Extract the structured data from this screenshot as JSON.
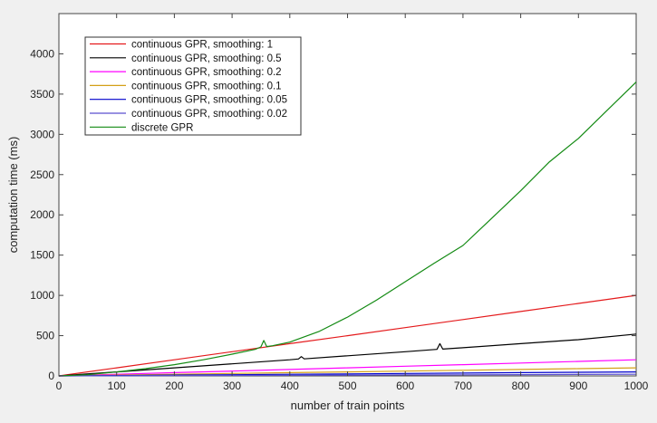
{
  "chart_data": {
    "type": "line",
    "title": "",
    "xlabel": "number of train points",
    "ylabel": "computation time (ms)",
    "xlim": [
      0,
      1000
    ],
    "ylim": [
      0,
      4500
    ],
    "xticks": [
      0,
      100,
      200,
      300,
      400,
      500,
      600,
      700,
      800,
      900,
      1000
    ],
    "yticks": [
      0,
      500,
      1000,
      1500,
      2000,
      2500,
      3000,
      3500,
      4000
    ],
    "grid": false,
    "legend_position": "top-left",
    "series": [
      {
        "name": "continuous GPR, smoothing: 1",
        "color": "#e41a1c",
        "x": [
          0,
          100,
          200,
          300,
          400,
          500,
          600,
          700,
          800,
          900,
          1000
        ],
        "y": [
          0,
          100,
          200,
          300,
          400,
          500,
          600,
          700,
          800,
          900,
          1000
        ]
      },
      {
        "name": "continuous GPR, smoothing: 0.5",
        "color": "#000000",
        "x": [
          0,
          100,
          200,
          300,
          400,
          415,
          420,
          425,
          500,
          600,
          655,
          660,
          665,
          700,
          800,
          900,
          1000
        ],
        "y": [
          0,
          50,
          100,
          150,
          200,
          210,
          240,
          212,
          250,
          300,
          330,
          400,
          333,
          350,
          400,
          450,
          520
        ]
      },
      {
        "name": "continuous GPR, smoothing: 0.2",
        "color": "#ff00ff",
        "x": [
          0,
          100,
          200,
          300,
          400,
          500,
          600,
          700,
          800,
          900,
          1000
        ],
        "y": [
          0,
          20,
          40,
          60,
          80,
          100,
          120,
          140,
          160,
          180,
          200
        ]
      },
      {
        "name": "continuous GPR, smoothing: 0.1",
        "color": "#d4a017",
        "x": [
          0,
          100,
          200,
          300,
          400,
          500,
          600,
          700,
          800,
          900,
          1000
        ],
        "y": [
          0,
          10,
          20,
          30,
          40,
          50,
          60,
          70,
          80,
          90,
          100
        ]
      },
      {
        "name": "continuous GPR, smoothing: 0.05",
        "color": "#0000cc",
        "x": [
          0,
          100,
          200,
          300,
          400,
          500,
          600,
          700,
          800,
          900,
          1000
        ],
        "y": [
          0,
          5,
          10,
          15,
          20,
          25,
          30,
          35,
          40,
          45,
          50
        ]
      },
      {
        "name": "continuous GPR, smoothing: 0.02",
        "color": "#5a4fcf",
        "x": [
          0,
          100,
          200,
          300,
          400,
          500,
          600,
          700,
          800,
          900,
          1000
        ],
        "y": [
          0,
          2,
          4,
          6,
          8,
          10,
          12,
          14,
          16,
          18,
          20
        ]
      },
      {
        "name": "discrete GPR",
        "color": "#138a13",
        "x": [
          0,
          50,
          100,
          150,
          200,
          250,
          300,
          340,
          350,
          355,
          360,
          370,
          400,
          450,
          500,
          550,
          600,
          650,
          700,
          750,
          800,
          850,
          900,
          950,
          1000
        ],
        "y": [
          0,
          15,
          50,
          90,
          140,
          200,
          270,
          330,
          360,
          440,
          365,
          375,
          420,
          550,
          730,
          940,
          1170,
          1400,
          1620,
          1960,
          2300,
          2660,
          2950,
          3300,
          3650
        ]
      }
    ]
  }
}
